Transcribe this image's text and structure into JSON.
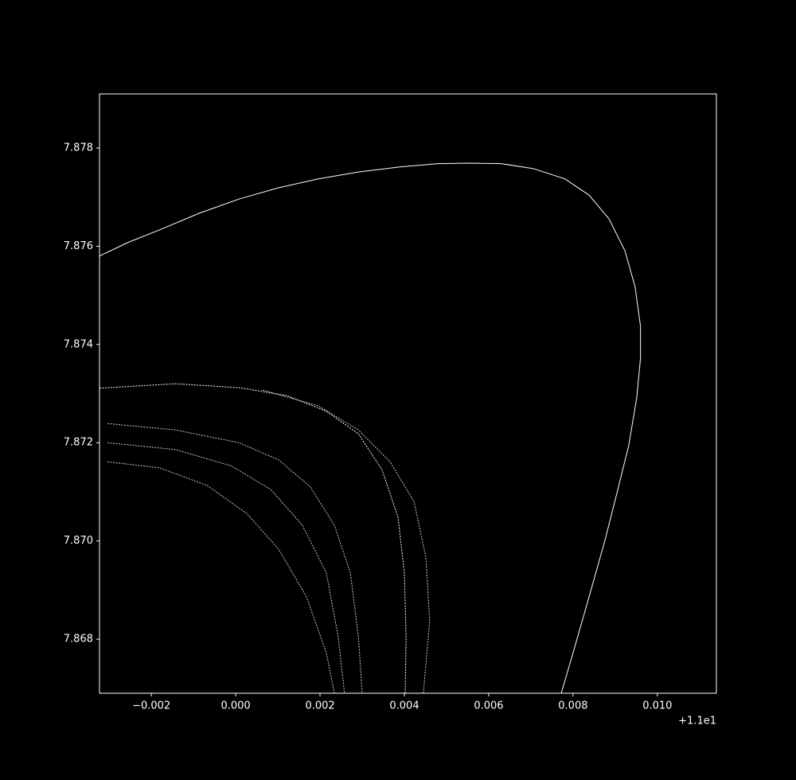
{
  "chart_data": {
    "type": "line",
    "x_offset": "+1.1e1",
    "xlim": [
      -0.00323,
      0.0114
    ],
    "ylim": [
      7.8669,
      7.8791
    ],
    "xticks": [
      {
        "value": -0.002,
        "label": "−0.002"
      },
      {
        "value": 0.0,
        "label": "0.000"
      },
      0.002,
      0.004,
      0.006,
      0.008,
      {
        "value": 0.01,
        "label": "0.010"
      }
    ],
    "yticks": [
      7.868,
      {
        "value": 7.87,
        "label": "7.870"
      },
      7.872,
      7.874,
      7.876,
      7.878
    ],
    "series": [
      {
        "color": "#ffffff",
        "x": [
          -0.00323,
          -0.00257,
          -0.00181,
          -0.00087,
          8e-05,
          0.00102,
          0.00196,
          0.00291,
          0.00385,
          0.00479,
          0.00555,
          0.0063,
          0.00706,
          0.00781,
          0.00838,
          0.00885,
          0.00923,
          0.00947,
          0.0096,
          0.0096,
          0.00951,
          0.00932,
          0.00904,
          0.00875,
          0.00838,
          0.008,
          0.00772
        ],
        "values": [
          7.8758,
          7.87607,
          7.87633,
          7.87667,
          7.87696,
          7.87719,
          7.87737,
          7.87751,
          7.87761,
          7.87768,
          7.87769,
          7.87768,
          7.87758,
          7.87737,
          7.87704,
          7.87656,
          7.87591,
          7.87518,
          7.87437,
          7.87372,
          7.87291,
          7.87194,
          7.87097,
          7.86999,
          7.86886,
          7.86772,
          7.8669
        ]
      },
      {
        "color": "#ffffff",
        "x": [
          -0.00323,
          -0.00143,
          8e-05,
          0.00121,
          0.00215,
          0.00291,
          0.00347,
          0.00385,
          0.004,
          0.00404,
          0.00402
        ],
        "values": [
          7.87311,
          7.8732,
          7.87312,
          7.87296,
          7.87264,
          7.87218,
          7.87145,
          7.87048,
          7.86935,
          7.86805,
          7.8669
        ]
      },
      {
        "color": "#cccccc",
        "x": [
          0.00064,
          0.00196,
          0.00291,
          0.00366,
          0.00423,
          0.00451,
          0.0046,
          0.00445
        ],
        "values": [
          7.87307,
          7.87275,
          7.87226,
          7.87161,
          7.8708,
          7.86967,
          7.86837,
          7.8669
        ]
      },
      {
        "color": "#cccccc",
        "x": [
          -0.00304,
          -0.00143,
          8e-05,
          0.00102,
          0.00177,
          0.00234,
          0.00272,
          0.00291,
          0.003
        ],
        "values": [
          7.87239,
          7.87226,
          7.872,
          7.87165,
          7.8711,
          7.87032,
          7.86935,
          7.86805,
          7.8669
        ]
      },
      {
        "color": "#cccccc",
        "x": [
          -0.00304,
          -0.00143,
          -0.00011,
          0.00083,
          0.00158,
          0.00215,
          0.00243,
          0.00258
        ],
        "values": [
          7.872,
          7.87186,
          7.87153,
          7.87105,
          7.87032,
          7.86935,
          7.86805,
          7.8669
        ]
      },
      {
        "color": "#cccccc",
        "x": [
          -0.00304,
          -0.00181,
          -0.00068,
          0.00026,
          0.00102,
          0.00168,
          0.00215,
          0.00234
        ],
        "values": [
          7.87161,
          7.87149,
          7.87113,
          7.87056,
          7.86983,
          7.86886,
          7.86772,
          7.8669
        ]
      }
    ]
  }
}
